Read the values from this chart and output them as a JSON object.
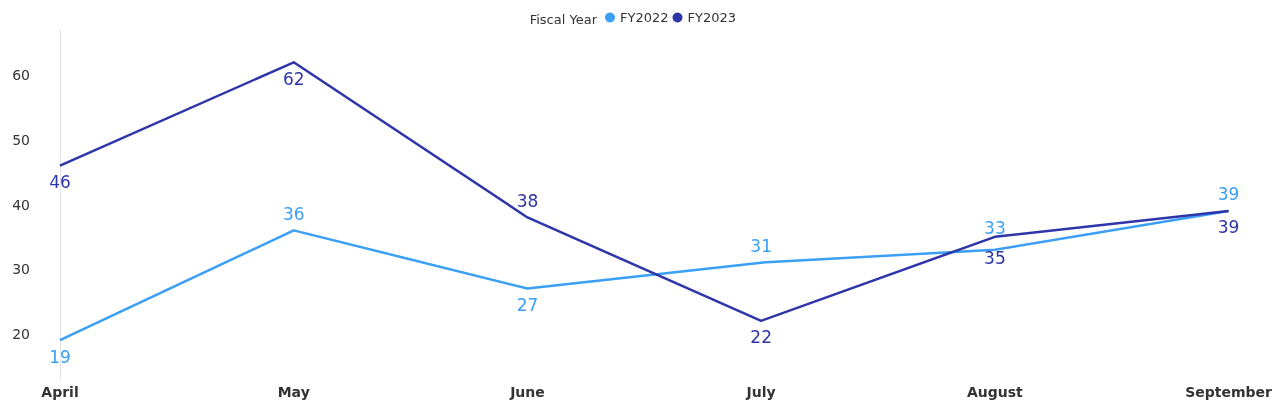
{
  "chart_data": {
    "type": "line",
    "legend_title": "Fiscal Year",
    "legend": "top",
    "grid": false,
    "marker": "none",
    "data_labels": true,
    "categories": [
      "April",
      "May",
      "June",
      "July",
      "August",
      "September"
    ],
    "series": [
      {
        "name": "FY2022",
        "color": "#3a9ff5",
        "values": [
          19,
          36,
          27,
          31,
          33,
          39
        ]
      },
      {
        "name": "FY2023",
        "color": "#2e35a8",
        "values": [
          46,
          62,
          38,
          22,
          35,
          39
        ]
      }
    ],
    "ylim": [
      13,
      67
    ],
    "yticks": [
      20,
      30,
      40,
      50,
      60
    ]
  }
}
